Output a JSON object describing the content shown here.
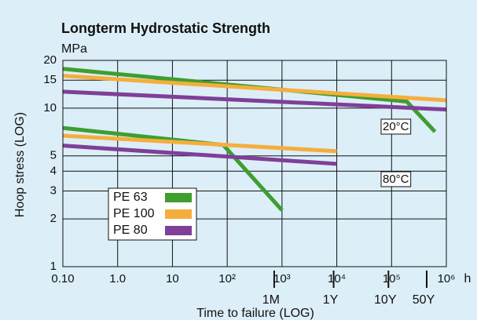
{
  "chart_data": {
    "type": "line",
    "title": "Longterm Hydrostatic Strength",
    "y_unit": "MPa",
    "x_unit": "h",
    "xlabel": "Time to failure (LOG)",
    "ylabel": "Hoop stress (LOG)",
    "xscale": "log",
    "yscale": "log",
    "grid": true,
    "xlim": [
      0.1,
      1000000
    ],
    "ylim": [
      1,
      20
    ],
    "xticks": [
      {
        "value": 0.1,
        "label": "0.10"
      },
      {
        "value": 1,
        "label": "1.0"
      },
      10,
      {
        "value": 100,
        "label": "10²"
      },
      {
        "value": 1000,
        "label": "10³"
      },
      {
        "value": 10000,
        "label": "10⁴"
      },
      {
        "value": 100000,
        "label": "10⁵"
      },
      {
        "value": 1000000,
        "label": "10⁶"
      }
    ],
    "x2ticks": [
      {
        "value": 720,
        "label": "1M"
      },
      {
        "value": 8760,
        "label": "1Y"
      },
      {
        "value": 87600,
        "label": "10Y"
      },
      {
        "value": 438000,
        "label": "50Y"
      }
    ],
    "yticks": [
      1,
      2,
      3,
      4,
      5,
      10,
      15,
      20
    ],
    "annotations": [
      "20°C",
      "80°C"
    ],
    "series": [
      {
        "name": "PE 63",
        "color": "#3f9e2f",
        "lines": [
          {
            "x": [
              0.1,
              190000,
              620000
            ],
            "values": [
              17.7,
              11,
              7.1
            ]
          },
          {
            "x": [
              0.1,
              85,
              1000
            ],
            "values": [
              7.5,
              5.85,
              2.27
            ]
          }
        ]
      },
      {
        "name": "PE 100",
        "color": "#f5ae3c",
        "lines": [
          {
            "x": [
              0.1,
              1000000
            ],
            "values": [
              16,
              11.2
            ]
          },
          {
            "x": [
              0.1,
              10000
            ],
            "values": [
              6.7,
              5.35
            ]
          }
        ]
      },
      {
        "name": "PE 80",
        "color": "#7f3f98",
        "lines": [
          {
            "x": [
              0.1,
              1000000
            ],
            "values": [
              12.7,
              9.8
            ]
          },
          {
            "x": [
              0.1,
              10000
            ],
            "values": [
              5.8,
              4.45
            ]
          }
        ]
      }
    ]
  }
}
